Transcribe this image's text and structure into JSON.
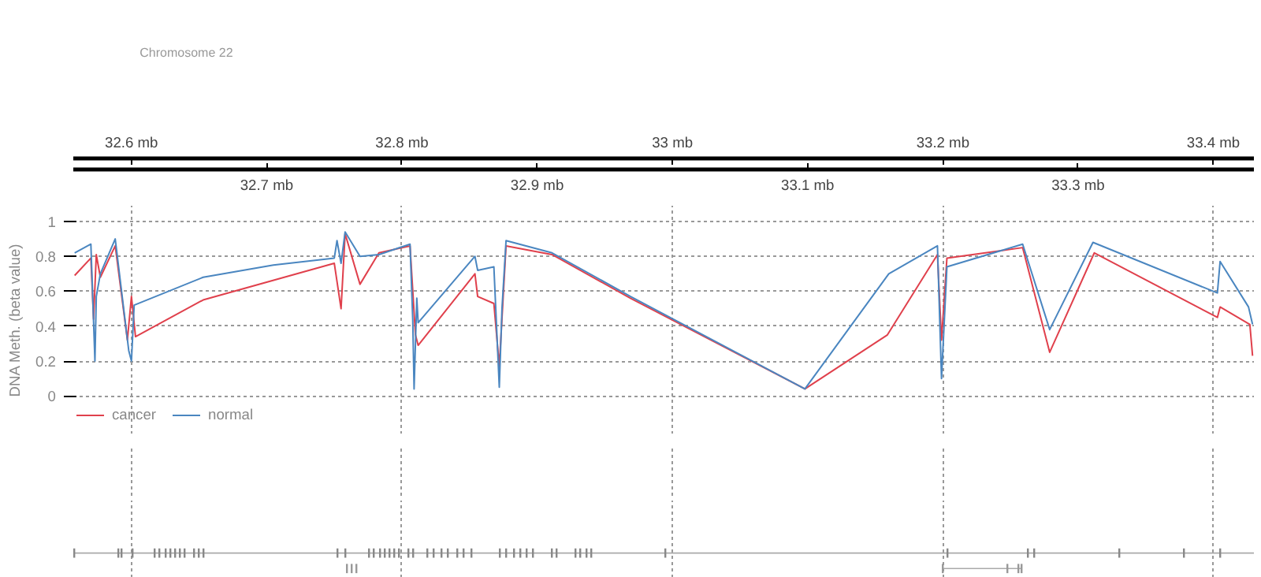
{
  "chart_data": {
    "type": "line",
    "ylabel": "DNA Meth. (beta value)",
    "annotations": [
      "Chromosome 22"
    ],
    "xlim": [
      32.557,
      33.43
    ],
    "ylim": [
      -0.22,
      1.09
    ],
    "x2lim": [
      32.557,
      33.43
    ],
    "x2ticks": [
      {
        "value": 32.6,
        "label": "32.6 mb"
      },
      {
        "value": 32.8,
        "label": "32.8 mb"
      },
      {
        "value": 33.0,
        "label": "33 mb"
      },
      {
        "value": 33.2,
        "label": "33.2 mb"
      },
      {
        "value": 33.4,
        "label": "33.4 mb"
      }
    ],
    "xticks": [
      {
        "value": 32.7,
        "label": "32.7 mb"
      },
      {
        "value": 32.9,
        "label": "32.9 mb"
      },
      {
        "value": 33.1,
        "label": "33.1 mb"
      },
      {
        "value": 33.3,
        "label": "33.3 mb"
      }
    ],
    "yticks": [
      0,
      0.2,
      0.4,
      0.6,
      0.8,
      1
    ],
    "series": [
      {
        "name": "cancer",
        "color": "#e0404c",
        "x": [
          32.558,
          32.57,
          32.572,
          32.574,
          32.577,
          32.588,
          32.597,
          32.6,
          32.603,
          32.653,
          32.75,
          32.755,
          32.758,
          32.769,
          32.783,
          32.806,
          32.81,
          32.812,
          32.854,
          32.856,
          32.868,
          32.872,
          32.877,
          32.911,
          32.969,
          33.098,
          33.159,
          33.196,
          33.199,
          33.203,
          33.259,
          33.279,
          33.312,
          33.403,
          33.405,
          33.427,
          33.429
        ],
        "values": [
          0.69,
          0.79,
          0.44,
          0.81,
          0.68,
          0.86,
          0.32,
          0.57,
          0.34,
          0.55,
          0.76,
          0.5,
          0.93,
          0.64,
          0.82,
          0.86,
          0.35,
          0.29,
          0.7,
          0.57,
          0.53,
          0.17,
          0.86,
          0.81,
          0.56,
          0.04,
          0.35,
          0.81,
          0.32,
          0.79,
          0.85,
          0.25,
          0.82,
          0.45,
          0.51,
          0.41,
          0.23
        ]
      },
      {
        "name": "normal",
        "color": "#4a86c0",
        "x": [
          32.558,
          32.57,
          32.573,
          32.574,
          32.577,
          32.588,
          32.598,
          32.6,
          32.602,
          32.653,
          32.705,
          32.75,
          32.752,
          32.755,
          32.758,
          32.769,
          32.783,
          32.806,
          32.808,
          32.809,
          32.811,
          32.812,
          32.854,
          32.856,
          32.868,
          32.872,
          32.874,
          32.877,
          32.911,
          32.969,
          33.098,
          33.16,
          33.196,
          33.199,
          33.203,
          33.259,
          33.279,
          33.311,
          33.403,
          33.405,
          33.426,
          33.429
        ],
        "values": [
          0.82,
          0.87,
          0.2,
          0.57,
          0.7,
          0.9,
          0.26,
          0.2,
          0.52,
          0.68,
          0.75,
          0.79,
          0.89,
          0.76,
          0.94,
          0.8,
          0.81,
          0.87,
          0.44,
          0.04,
          0.56,
          0.42,
          0.8,
          0.72,
          0.74,
          0.05,
          0.5,
          0.89,
          0.82,
          0.57,
          0.04,
          0.7,
          0.86,
          0.1,
          0.74,
          0.87,
          0.38,
          0.88,
          0.59,
          0.77,
          0.51,
          0.41
        ]
      }
    ],
    "grid": true,
    "legend": "bottom left",
    "line_style": "solid",
    "marker": "none"
  }
}
